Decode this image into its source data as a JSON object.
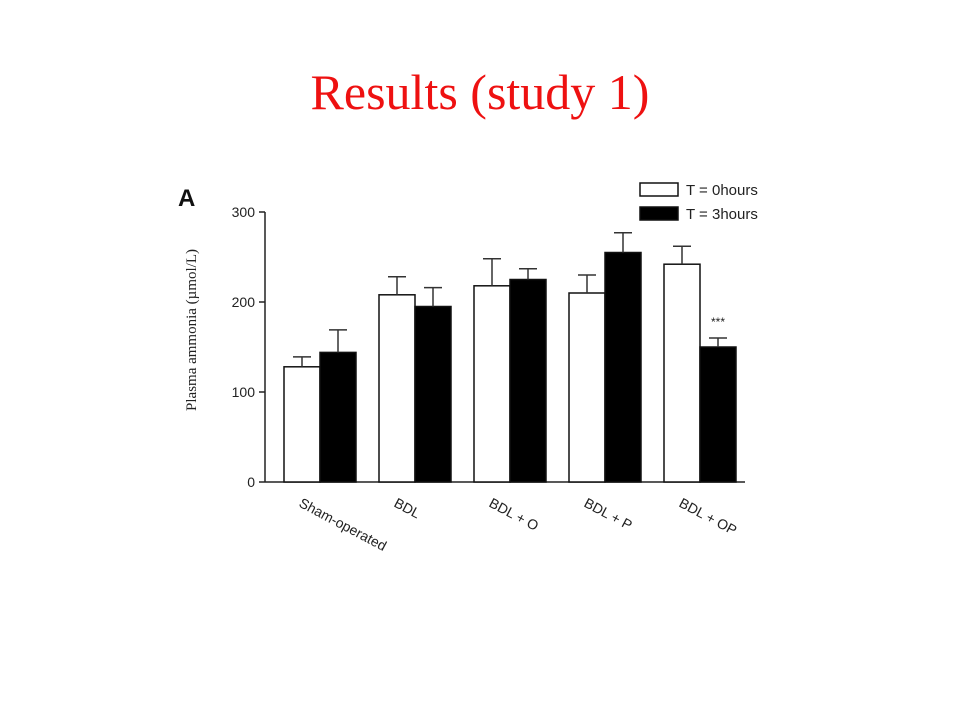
{
  "slide": {
    "title": "Results (study 1)"
  },
  "chart_data": {
    "type": "bar",
    "panel_label": "A",
    "title": "",
    "xlabel": "",
    "ylabel": "Plasma ammonia (µmol/L)",
    "ylim": [
      0,
      300
    ],
    "yticks": [
      0,
      100,
      200,
      300
    ],
    "categories": [
      "Sham-operated",
      "BDL",
      "BDL + O",
      "BDL + P",
      "BDL + OP"
    ],
    "series": [
      {
        "name": "T = 0hours",
        "color": "#ffffff",
        "values": [
          128,
          208,
          218,
          210,
          242
        ],
        "errors": [
          11,
          20,
          30,
          20,
          20
        ]
      },
      {
        "name": "T = 3hours",
        "color": "#000000",
        "values": [
          144,
          195,
          225,
          255,
          150
        ],
        "errors": [
          25,
          21,
          12,
          22,
          10
        ]
      }
    ],
    "annotations": [
      {
        "category": "BDL + OP",
        "series": "T = 3hours",
        "text": "***"
      }
    ],
    "legend": "top-right",
    "grid": false
  }
}
